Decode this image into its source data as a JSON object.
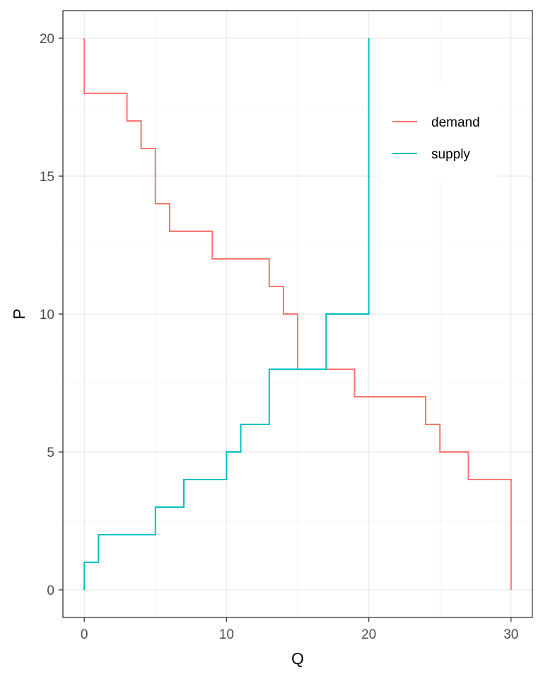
{
  "chart_data": {
    "type": "line",
    "subtype": "step",
    "title": "",
    "xlabel": "Q",
    "ylabel": "P",
    "xlim": [
      -1.5,
      31.5
    ],
    "ylim": [
      -1,
      21
    ],
    "x_ticks": [
      0,
      10,
      20,
      30
    ],
    "x_tick_labels": [
      "0",
      "10",
      "20",
      "30"
    ],
    "y_ticks": [
      0,
      5,
      10,
      15,
      20
    ],
    "y_tick_labels": [
      "0",
      "5",
      "10",
      "15",
      "20"
    ],
    "grid": true,
    "legend_position": "top-right",
    "series": [
      {
        "name": "demand",
        "color": "#F8766D",
        "points": [
          [
            0,
            20
          ],
          [
            0,
            18
          ],
          [
            3,
            18
          ],
          [
            3,
            17
          ],
          [
            4,
            17
          ],
          [
            4,
            16
          ],
          [
            5,
            16
          ],
          [
            5,
            14
          ],
          [
            6,
            14
          ],
          [
            6,
            13
          ],
          [
            9,
            13
          ],
          [
            9,
            12
          ],
          [
            13,
            12
          ],
          [
            13,
            11
          ],
          [
            14,
            11
          ],
          [
            14,
            10
          ],
          [
            15,
            10
          ],
          [
            15,
            8
          ],
          [
            19,
            8
          ],
          [
            19,
            7
          ],
          [
            24,
            7
          ],
          [
            24,
            6
          ],
          [
            25,
            6
          ],
          [
            25,
            5
          ],
          [
            27,
            5
          ],
          [
            27,
            4
          ],
          [
            30,
            4
          ],
          [
            30,
            0
          ]
        ]
      },
      {
        "name": "supply",
        "color": "#00BFC4",
        "points": [
          [
            0,
            0
          ],
          [
            0,
            1
          ],
          [
            1,
            1
          ],
          [
            1,
            2
          ],
          [
            5,
            2
          ],
          [
            5,
            3
          ],
          [
            7,
            3
          ],
          [
            7,
            4
          ],
          [
            10,
            4
          ],
          [
            10,
            5
          ],
          [
            11,
            5
          ],
          [
            11,
            6
          ],
          [
            13,
            6
          ],
          [
            13,
            8
          ],
          [
            17,
            8
          ],
          [
            17,
            10
          ],
          [
            20,
            10
          ],
          [
            20,
            20
          ]
        ]
      }
    ]
  }
}
